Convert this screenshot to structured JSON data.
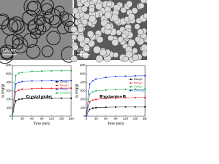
{
  "images": [
    {
      "scale_bar": "100 nm"
    },
    {
      "scale_bar": "200 nm"
    }
  ],
  "chart_data": [
    {
      "type": "line",
      "annotation": "Crystal violet",
      "x_label": "Time (min)",
      "y_label": "qₜ (mg/g)",
      "x": [
        0,
        10,
        20,
        30,
        60,
        90,
        120,
        150,
        180
      ],
      "xlim": [
        0,
        180
      ],
      "xticks": [
        0,
        30,
        60,
        90,
        120,
        150,
        180
      ],
      "ylim": [
        0,
        600
      ],
      "yticks": [
        0,
        100,
        200,
        300,
        400,
        500,
        600
      ],
      "legend": "center right",
      "series": [
        {
          "name": "25mg/L",
          "color": "#000000",
          "values": [
            0,
            180,
            200,
            205,
            210,
            212,
            212,
            213,
            213
          ]
        },
        {
          "name": "50mg/L",
          "color": "#e8191f",
          "values": [
            0,
            290,
            310,
            320,
            325,
            330,
            330,
            332,
            332
          ]
        },
        {
          "name": "75mg/L",
          "color": "#1f3fe0",
          "values": [
            0,
            380,
            400,
            410,
            418,
            420,
            422,
            422,
            423
          ]
        },
        {
          "name": "100mg/L",
          "color": "#22b14c",
          "values": [
            0,
            480,
            510,
            520,
            530,
            535,
            537,
            538,
            538
          ]
        }
      ]
    },
    {
      "type": "line",
      "annotation": "Rhodamine B",
      "x_label": "Time (min)",
      "y_label": "qₜ (mg/g)",
      "x": [
        0,
        10,
        20,
        30,
        60,
        90,
        120,
        150,
        180
      ],
      "xlim": [
        0,
        180
      ],
      "xticks": [
        0,
        30,
        60,
        90,
        120,
        150,
        180
      ],
      "ylim": [
        0,
        600
      ],
      "yticks": [
        0,
        100,
        200,
        300,
        400,
        500,
        600
      ],
      "legend": "upper right",
      "series": [
        {
          "name": "25mg/L",
          "color": "#000000",
          "values": [
            0,
            80,
            95,
            100,
            105,
            108,
            110,
            110,
            110
          ]
        },
        {
          "name": "50mg/L",
          "color": "#e8191f",
          "values": [
            0,
            170,
            190,
            200,
            210,
            215,
            218,
            220,
            220
          ]
        },
        {
          "name": "75mg/L",
          "color": "#22b14c",
          "values": [
            0,
            260,
            290,
            300,
            310,
            315,
            318,
            320,
            320
          ]
        },
        {
          "name": "100mg/L",
          "color": "#1f3fe0",
          "values": [
            0,
            380,
            420,
            440,
            460,
            470,
            475,
            478,
            480
          ]
        }
      ]
    }
  ]
}
